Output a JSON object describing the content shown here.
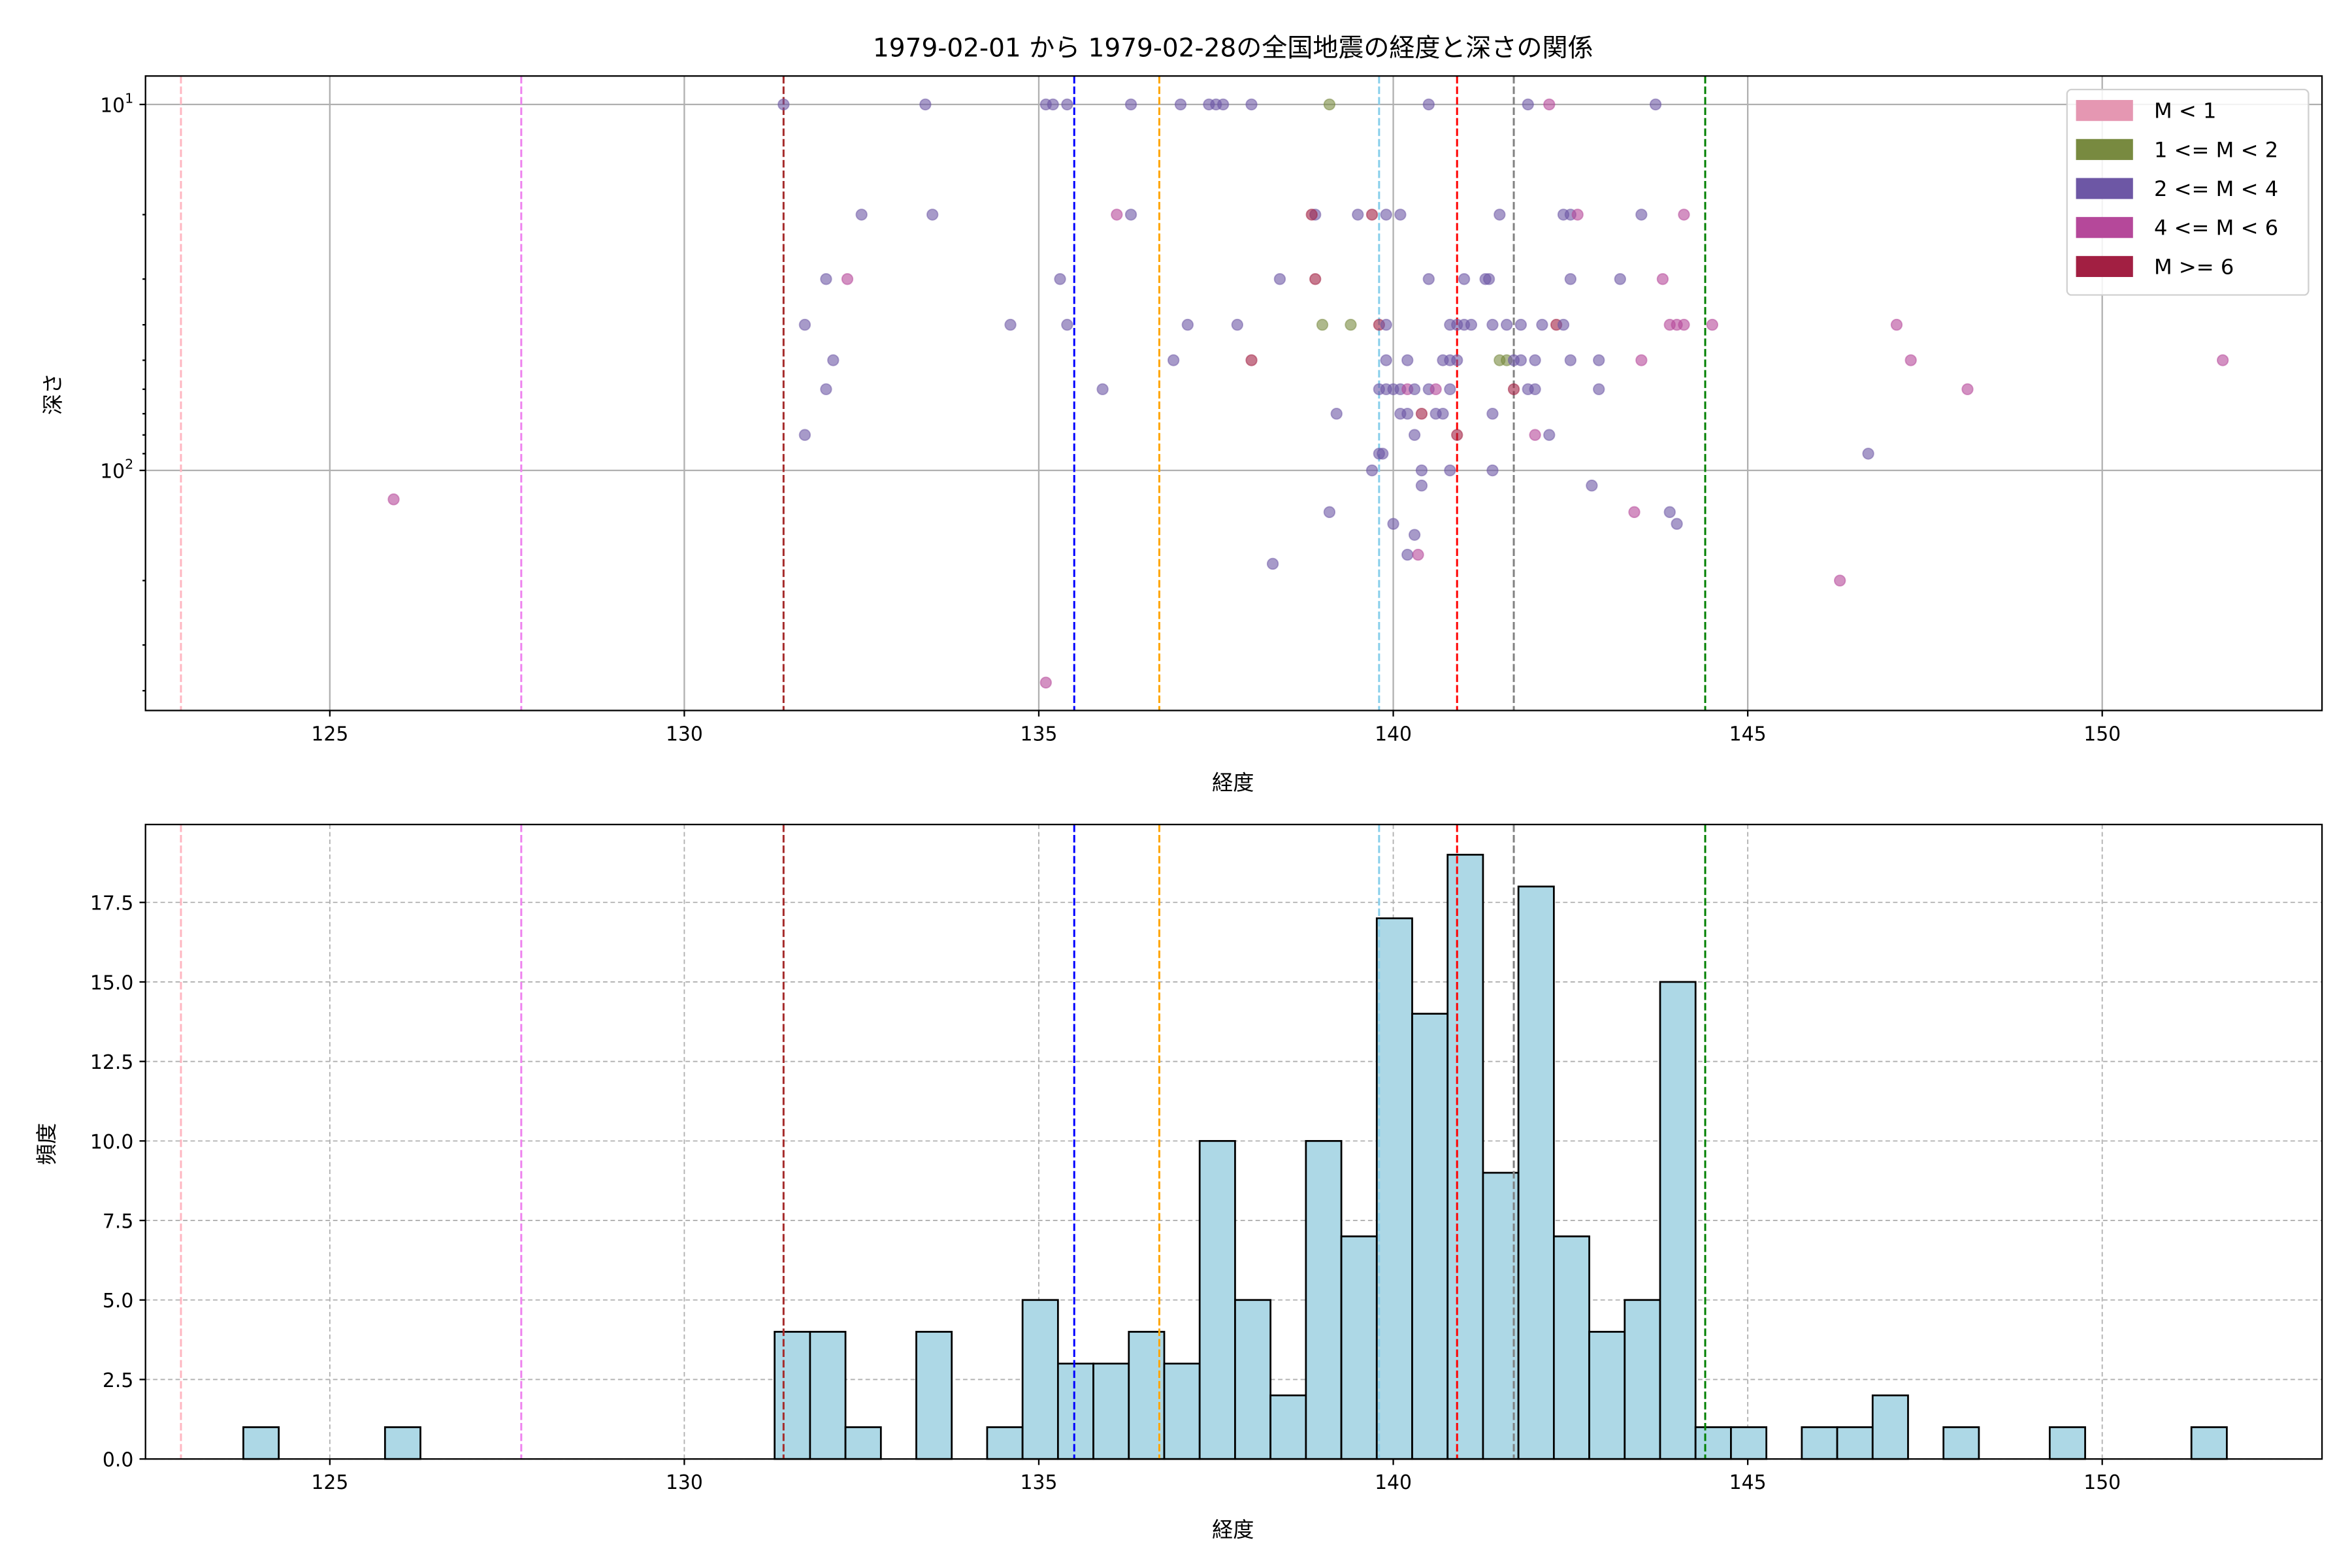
{
  "chart_data": [
    {
      "type": "scatter",
      "title": "1979-02-01 から 1979-02-28の全国地震の経度と深さの関係",
      "xlabel": "経度",
      "ylabel": "深さ",
      "xlim": [
        122.4,
        153.1
      ],
      "ylim": [
        453,
        8.36
      ],
      "yscale": "log",
      "yinverted": true,
      "grid": true,
      "xticks": [
        125,
        130,
        135,
        140,
        145,
        150
      ],
      "yticks": [
        {
          "value": 10,
          "base": "10",
          "exp": "1"
        },
        {
          "value": 100,
          "base": "10",
          "exp": "2"
        }
      ],
      "legend": {
        "placement": "top-right",
        "entries": [
          {
            "label": "M < 1",
            "color": "#e597b2"
          },
          {
            "label": "1 <= M < 2",
            "color": "#788a40"
          },
          {
            "label": "2 <= M < 4",
            "color": "#6d57a5"
          },
          {
            "label": "4 <= M < 6",
            "color": "#b5489a"
          },
          {
            "label": "M >= 6",
            "color": "#a21f42"
          }
        ]
      },
      "points": [
        [
          131.4,
          10,
          2
        ],
        [
          133.4,
          10,
          2
        ],
        [
          135.1,
          10,
          2
        ],
        [
          135.2,
          10,
          2
        ],
        [
          135.4,
          10,
          2
        ],
        [
          136.3,
          10,
          2
        ],
        [
          137.0,
          10,
          2
        ],
        [
          137.4,
          10,
          2
        ],
        [
          137.5,
          10,
          2
        ],
        [
          137.6,
          10,
          2
        ],
        [
          138.0,
          10,
          2
        ],
        [
          139.1,
          10,
          1
        ],
        [
          140.5,
          10,
          2
        ],
        [
          141.9,
          10,
          2
        ],
        [
          142.2,
          10,
          3
        ],
        [
          143.7,
          10,
          2
        ],
        [
          132.5,
          20,
          2
        ],
        [
          133.5,
          20,
          2
        ],
        [
          136.1,
          20,
          3
        ],
        [
          136.3,
          20,
          2
        ],
        [
          138.9,
          20,
          2
        ],
        [
          138.85,
          20,
          4
        ],
        [
          139.5,
          20,
          2
        ],
        [
          139.7,
          20,
          4
        ],
        [
          139.9,
          20,
          2
        ],
        [
          140.1,
          20,
          2
        ],
        [
          141.5,
          20,
          2
        ],
        [
          142.4,
          20,
          2
        ],
        [
          142.5,
          20,
          2
        ],
        [
          142.6,
          20,
          3
        ],
        [
          143.5,
          20,
          2
        ],
        [
          144.1,
          20,
          3
        ],
        [
          132.0,
          30,
          2
        ],
        [
          132.3,
          30,
          3
        ],
        [
          135.3,
          30,
          2
        ],
        [
          138.4,
          30,
          2
        ],
        [
          138.9,
          30,
          4
        ],
        [
          140.5,
          30,
          2
        ],
        [
          141.0,
          30,
          2
        ],
        [
          141.3,
          30,
          2
        ],
        [
          141.35,
          30,
          2
        ],
        [
          142.5,
          30,
          2
        ],
        [
          143.2,
          30,
          2
        ],
        [
          143.8,
          30,
          3
        ],
        [
          131.7,
          40,
          2
        ],
        [
          134.6,
          40,
          2
        ],
        [
          135.4,
          40,
          2
        ],
        [
          137.1,
          40,
          2
        ],
        [
          137.8,
          40,
          2
        ],
        [
          139.0,
          40,
          1
        ],
        [
          139.4,
          40,
          1
        ],
        [
          139.8,
          40,
          4
        ],
        [
          139.9,
          40,
          2
        ],
        [
          140.8,
          40,
          2
        ],
        [
          140.9,
          40,
          2
        ],
        [
          141.0,
          40,
          2
        ],
        [
          141.1,
          40,
          2
        ],
        [
          141.4,
          40,
          2
        ],
        [
          141.6,
          40,
          2
        ],
        [
          141.8,
          40,
          2
        ],
        [
          142.1,
          40,
          2
        ],
        [
          142.3,
          40,
          4
        ],
        [
          142.4,
          40,
          2
        ],
        [
          143.9,
          40,
          3
        ],
        [
          144.0,
          40,
          3
        ],
        [
          144.1,
          40,
          3
        ],
        [
          144.5,
          40,
          3
        ],
        [
          147.1,
          40,
          3
        ],
        [
          132.1,
          50,
          2
        ],
        [
          136.9,
          50,
          2
        ],
        [
          138.0,
          50,
          4
        ],
        [
          139.9,
          50,
          2
        ],
        [
          140.2,
          50,
          2
        ],
        [
          140.7,
          50,
          2
        ],
        [
          140.8,
          50,
          2
        ],
        [
          140.9,
          50,
          2
        ],
        [
          141.5,
          50,
          1
        ],
        [
          141.6,
          50,
          1
        ],
        [
          141.7,
          50,
          2
        ],
        [
          141.8,
          50,
          2
        ],
        [
          142.0,
          50,
          2
        ],
        [
          142.5,
          50,
          2
        ],
        [
          142.9,
          50,
          2
        ],
        [
          143.5,
          50,
          3
        ],
        [
          147.3,
          50,
          3
        ],
        [
          151.7,
          50,
          3
        ],
        [
          132.0,
          60,
          2
        ],
        [
          135.9,
          60,
          2
        ],
        [
          139.8,
          60,
          2
        ],
        [
          139.9,
          60,
          2
        ],
        [
          140.0,
          60,
          2
        ],
        [
          140.1,
          60,
          2
        ],
        [
          140.2,
          60,
          3
        ],
        [
          140.3,
          60,
          2
        ],
        [
          140.5,
          60,
          2
        ],
        [
          140.6,
          60,
          3
        ],
        [
          140.8,
          60,
          2
        ],
        [
          141.7,
          60,
          4
        ],
        [
          141.9,
          60,
          2
        ],
        [
          142.0,
          60,
          2
        ],
        [
          142.9,
          60,
          2
        ],
        [
          148.1,
          60,
          3
        ],
        [
          139.2,
          70,
          2
        ],
        [
          140.1,
          70,
          2
        ],
        [
          140.2,
          70,
          2
        ],
        [
          140.4,
          70,
          4
        ],
        [
          140.6,
          70,
          2
        ],
        [
          140.7,
          70,
          2
        ],
        [
          141.4,
          70,
          2
        ],
        [
          131.7,
          80,
          2
        ],
        [
          140.3,
          80,
          2
        ],
        [
          140.9,
          80,
          4
        ],
        [
          142.0,
          80,
          3
        ],
        [
          142.2,
          80,
          2
        ],
        [
          139.8,
          90,
          2
        ],
        [
          139.85,
          90,
          2
        ],
        [
          146.7,
          90,
          2
        ],
        [
          139.7,
          100,
          2
        ],
        [
          140.4,
          100,
          2
        ],
        [
          140.8,
          100,
          2
        ],
        [
          141.4,
          100,
          2
        ],
        [
          140.4,
          110,
          2
        ],
        [
          142.8,
          110,
          2
        ],
        [
          125.9,
          120,
          3
        ],
        [
          139.1,
          130,
          2
        ],
        [
          143.4,
          130,
          3
        ],
        [
          143.9,
          130,
          2
        ],
        [
          140.0,
          140,
          2
        ],
        [
          144.0,
          140,
          2
        ],
        [
          140.3,
          150,
          2
        ],
        [
          140.2,
          170,
          2
        ],
        [
          140.35,
          170,
          3
        ],
        [
          138.3,
          180,
          2
        ],
        [
          146.3,
          200,
          3
        ],
        [
          135.1,
          380,
          3
        ]
      ],
      "reference_lines": [
        {
          "x": 122.9,
          "color": "#ffb6c1"
        },
        {
          "x": 127.7,
          "color": "#ee82ee"
        },
        {
          "x": 131.4,
          "color": "#a52a2a"
        },
        {
          "x": 135.5,
          "color": "#0000ff"
        },
        {
          "x": 136.7,
          "color": "#ffa500"
        },
        {
          "x": 139.8,
          "color": "#87ceeb"
        },
        {
          "x": 140.9,
          "color": "#ff0000"
        },
        {
          "x": 141.7,
          "color": "#808080"
        },
        {
          "x": 144.4,
          "color": "#008000"
        }
      ]
    },
    {
      "type": "bar",
      "subtype": "histogram",
      "xlabel": "経度",
      "ylabel": "頻度",
      "xlim": [
        122.4,
        153.1
      ],
      "ylim": [
        0,
        19.95
      ],
      "grid": true,
      "xticks": [
        125,
        130,
        135,
        140,
        145,
        150
      ],
      "yticks": [
        "0.0",
        "2.5",
        "5.0",
        "7.5",
        "10.0",
        "12.5",
        "15.0",
        "17.5"
      ],
      "bin_start": 123.78,
      "bin_width": 0.4996,
      "bar_color": "#add8e6",
      "counts": [
        1,
        0,
        0,
        0,
        1,
        0,
        0,
        0,
        0,
        0,
        0,
        0,
        0,
        0,
        0,
        4,
        4,
        1,
        0,
        4,
        0,
        1,
        5,
        3,
        3,
        4,
        3,
        10,
        5,
        2,
        10,
        7,
        17,
        14,
        19,
        9,
        18,
        7,
        4,
        5,
        15,
        1,
        1,
        0,
        1,
        1,
        2,
        0,
        1,
        0,
        0,
        1,
        0,
        0,
        0,
        1
      ],
      "reference_lines": [
        {
          "x": 122.9,
          "color": "#ffb6c1"
        },
        {
          "x": 127.7,
          "color": "#ee82ee"
        },
        {
          "x": 131.4,
          "color": "#a52a2a"
        },
        {
          "x": 135.5,
          "color": "#0000ff"
        },
        {
          "x": 136.7,
          "color": "#ffa500"
        },
        {
          "x": 139.8,
          "color": "#87ceeb"
        },
        {
          "x": 140.9,
          "color": "#ff0000"
        },
        {
          "x": 141.7,
          "color": "#808080"
        },
        {
          "x": 144.4,
          "color": "#008000"
        }
      ]
    }
  ]
}
